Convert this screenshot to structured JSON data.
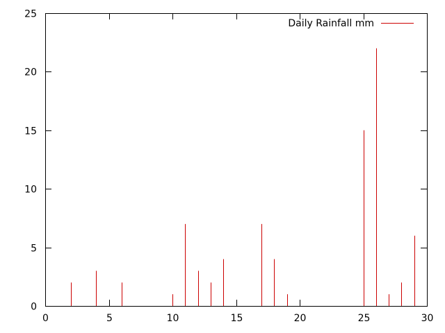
{
  "chart_data": {
    "type": "bar",
    "title": "",
    "xlabel": "",
    "ylabel": "",
    "xlim": [
      0,
      30
    ],
    "ylim": [
      0,
      25
    ],
    "x_ticks": [
      0,
      5,
      10,
      15,
      20,
      25,
      30
    ],
    "y_ticks": [
      0,
      5,
      10,
      15,
      20,
      25
    ],
    "grid": false,
    "legend_position": "top-right",
    "series": [
      {
        "name": "Daily Rainfall mm",
        "color": "#cc0000",
        "points": [
          {
            "x": 2,
            "y": 2
          },
          {
            "x": 4,
            "y": 3
          },
          {
            "x": 6,
            "y": 2
          },
          {
            "x": 10,
            "y": 1
          },
          {
            "x": 11,
            "y": 7
          },
          {
            "x": 12,
            "y": 3
          },
          {
            "x": 13,
            "y": 2
          },
          {
            "x": 14,
            "y": 4
          },
          {
            "x": 17,
            "y": 7
          },
          {
            "x": 18,
            "y": 4
          },
          {
            "x": 19,
            "y": 1
          },
          {
            "x": 25,
            "y": 15
          },
          {
            "x": 26,
            "y": 22
          },
          {
            "x": 27,
            "y": 1
          },
          {
            "x": 28,
            "y": 2
          },
          {
            "x": 29,
            "y": 6
          }
        ]
      }
    ]
  }
}
